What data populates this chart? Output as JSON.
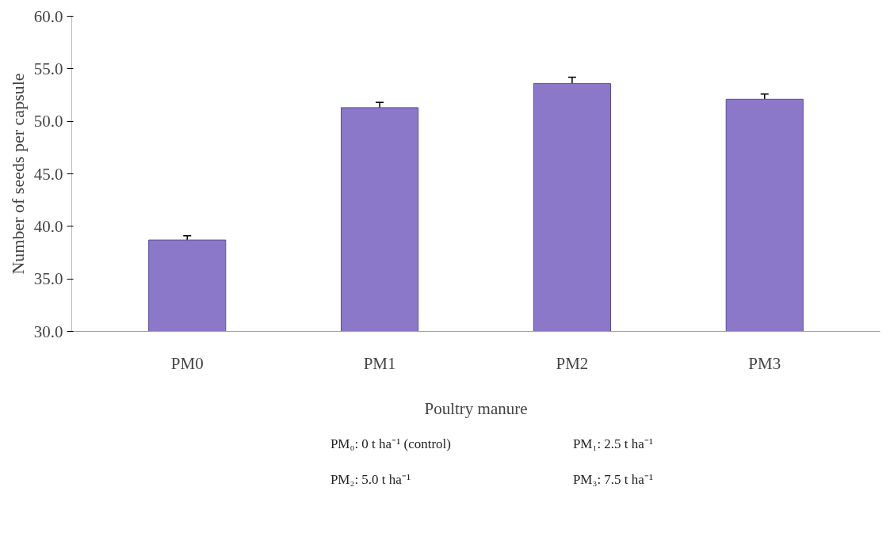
{
  "chart_data": {
    "type": "bar",
    "xlabel": "Poultry manure",
    "ylabel": "Number of seeds per capsule",
    "categories": [
      "PM0",
      "PM1",
      "PM2",
      "PM3"
    ],
    "values": [
      38.7,
      51.3,
      53.6,
      52.1
    ],
    "errors": [
      0.4,
      0.5,
      0.6,
      0.5
    ],
    "color": "#8b78c9",
    "ylim": [
      30,
      60
    ],
    "yticks": [
      {
        "value": 30,
        "label": "30.0"
      },
      {
        "value": 35,
        "label": "35.0"
      },
      {
        "value": 40,
        "label": "40.0"
      },
      {
        "value": 45,
        "label": "45.0"
      },
      {
        "value": 50,
        "label": "50.0"
      },
      {
        "value": 55,
        "label": "55.0"
      },
      {
        "value": 60,
        "label": "60.0"
      }
    ],
    "grid": false,
    "annotations": [
      "PM₀: 0 t ha⁻¹ (control)",
      "PM₁: 2.5 t ha⁻¹",
      "PM₂: 5.0 t ha⁻¹",
      "PM₃: 7.5 t ha⁻¹"
    ]
  }
}
